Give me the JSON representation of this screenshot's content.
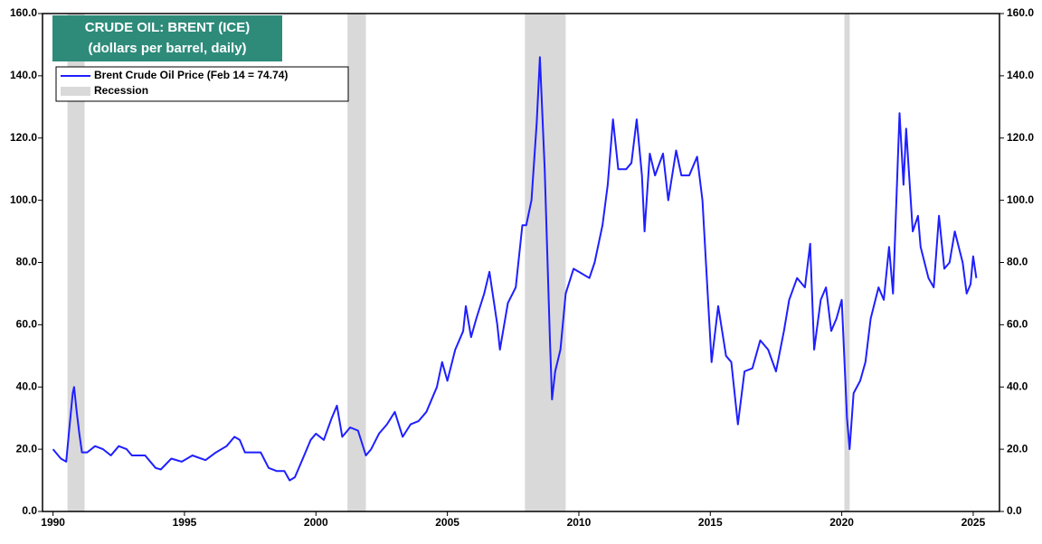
{
  "chart_data": {
    "type": "line",
    "title": "CRUDE OIL: BRENT (ICE)",
    "subtitle": "(dollars per barrel, daily)",
    "recession_label": "Recession",
    "recession_color": "#d9d9d9",
    "recessions": [
      [
        1990.55,
        1991.2
      ],
      [
        2001.2,
        2001.9
      ],
      [
        2007.95,
        2009.5
      ],
      [
        2020.1,
        2020.3
      ]
    ],
    "x": [
      1990.0,
      1990.3,
      1990.5,
      1990.6,
      1990.75,
      1990.8,
      1990.9,
      1991.0,
      1991.1,
      1991.3,
      1991.6,
      1991.9,
      1992.2,
      1992.5,
      1992.8,
      1993.0,
      1993.5,
      1993.9,
      1994.1,
      1994.5,
      1994.9,
      1995.3,
      1995.8,
      1996.2,
      1996.6,
      1996.9,
      1997.1,
      1997.3,
      1997.6,
      1997.9,
      1998.2,
      1998.5,
      1998.8,
      1999.0,
      1999.2,
      1999.5,
      1999.8,
      2000.0,
      2000.3,
      2000.6,
      2000.8,
      2001.0,
      2001.3,
      2001.6,
      2001.9,
      2002.1,
      2002.4,
      2002.7,
      2003.0,
      2003.3,
      2003.6,
      2003.9,
      2004.2,
      2004.6,
      2004.8,
      2005.0,
      2005.3,
      2005.6,
      2005.7,
      2005.9,
      2006.1,
      2006.4,
      2006.6,
      2006.9,
      2007.0,
      2007.3,
      2007.6,
      2007.85,
      2008.0,
      2008.2,
      2008.4,
      2008.52,
      2008.7,
      2008.9,
      2008.98,
      2009.1,
      2009.3,
      2009.5,
      2009.8,
      2010.0,
      2010.4,
      2010.6,
      2010.9,
      2011.1,
      2011.3,
      2011.5,
      2011.8,
      2012.0,
      2012.2,
      2012.4,
      2012.5,
      2012.7,
      2012.9,
      2013.2,
      2013.4,
      2013.7,
      2013.9,
      2014.2,
      2014.5,
      2014.7,
      2014.9,
      2015.05,
      2015.3,
      2015.6,
      2015.8,
      2016.05,
      2016.3,
      2016.6,
      2016.9,
      2017.2,
      2017.5,
      2017.8,
      2018.0,
      2018.3,
      2018.6,
      2018.8,
      2018.95,
      2019.2,
      2019.4,
      2019.6,
      2019.8,
      2020.0,
      2020.2,
      2020.3,
      2020.45,
      2020.7,
      2020.9,
      2021.1,
      2021.4,
      2021.6,
      2021.8,
      2021.95,
      2022.2,
      2022.35,
      2022.45,
      2022.7,
      2022.9,
      2023.0,
      2023.3,
      2023.5,
      2023.7,
      2023.9,
      2024.1,
      2024.3,
      2024.6,
      2024.75,
      2024.9,
      2025.0,
      2025.12
    ],
    "series": [
      {
        "name": "Brent Crude Oil Price (Feb 14 = 74.74)",
        "color": "#1f1fff",
        "values": [
          20,
          17,
          16,
          25,
          38,
          40,
          32,
          25,
          19,
          19,
          21,
          20,
          18,
          21,
          20,
          18,
          18,
          14,
          13.5,
          17,
          16,
          18,
          16.5,
          19,
          21,
          24,
          23,
          19,
          19,
          19,
          14,
          13,
          13,
          10,
          11,
          17,
          23,
          25,
          23,
          30,
          34,
          24,
          27,
          26,
          18,
          20,
          25,
          28,
          32,
          24,
          28,
          29,
          32,
          40,
          48,
          42,
          52,
          58,
          66,
          56,
          62,
          70,
          77,
          60,
          52,
          67,
          72,
          92,
          92,
          100,
          125,
          146,
          110,
          55,
          36,
          45,
          52,
          70,
          78,
          77,
          75,
          80,
          92,
          105,
          126,
          110,
          110,
          112,
          126,
          108,
          90,
          115,
          108,
          115,
          100,
          116,
          108,
          108,
          114,
          100,
          70,
          48,
          66,
          50,
          48,
          28,
          45,
          46,
          55,
          52,
          45,
          58,
          68,
          75,
          72,
          86,
          52,
          68,
          72,
          58,
          62,
          68,
          30,
          20,
          38,
          42,
          48,
          62,
          72,
          68,
          85,
          70,
          128,
          105,
          123,
          90,
          95,
          85,
          75,
          72,
          95,
          78,
          80,
          90,
          80,
          70,
          73,
          82,
          75
        ]
      }
    ],
    "xlim": [
      1989.6,
      2026
    ],
    "xticks": [
      1990,
      1995,
      2000,
      2005,
      2010,
      2015,
      2020,
      2025
    ],
    "ylim": [
      0,
      160
    ],
    "yticks": [
      {
        "value": 0,
        "label": "0.0"
      },
      {
        "value": 20,
        "label": "20.0"
      },
      {
        "value": 40,
        "label": "40.0"
      },
      {
        "value": 60,
        "label": "60.0"
      },
      {
        "value": 80,
        "label": "80.0"
      },
      {
        "value": 100,
        "label": "100.0"
      },
      {
        "value": 120,
        "label": "120.0"
      },
      {
        "value": 140,
        "label": "140.0"
      },
      {
        "value": 160,
        "label": "160.0"
      }
    ]
  }
}
